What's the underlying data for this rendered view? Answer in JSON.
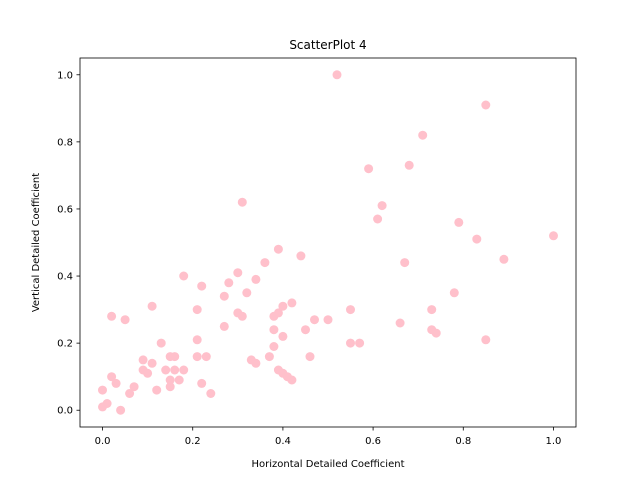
{
  "chart_data": {
    "type": "scatter",
    "title": "ScatterPlot 4",
    "xlabel": "Horizontal Detailed Coefficient",
    "ylabel": "Vertical Detailed Coefficient",
    "xlim": [
      -0.05,
      1.05
    ],
    "ylim": [
      -0.05,
      1.05
    ],
    "xticks": [
      0.0,
      0.2,
      0.4,
      0.6,
      0.8,
      1.0
    ],
    "yticks": [
      0.0,
      0.2,
      0.4,
      0.6,
      0.8,
      1.0
    ],
    "xtick_labels": [
      "0.0",
      "0.2",
      "0.4",
      "0.6",
      "0.8",
      "1.0"
    ],
    "ytick_labels": [
      "0.0",
      "0.2",
      "0.4",
      "0.6",
      "0.8",
      "1.0"
    ],
    "grid": false,
    "marker_color": "#ffc0cb",
    "points": [
      {
        "x": 0.0,
        "y": 0.06
      },
      {
        "x": 0.0,
        "y": 0.01
      },
      {
        "x": 0.01,
        "y": 0.02
      },
      {
        "x": 0.02,
        "y": 0.28
      },
      {
        "x": 0.02,
        "y": 0.1
      },
      {
        "x": 0.03,
        "y": 0.08
      },
      {
        "x": 0.04,
        "y": 0.0
      },
      {
        "x": 0.05,
        "y": 0.27
      },
      {
        "x": 0.06,
        "y": 0.05
      },
      {
        "x": 0.07,
        "y": 0.07
      },
      {
        "x": 0.09,
        "y": 0.12
      },
      {
        "x": 0.09,
        "y": 0.15
      },
      {
        "x": 0.1,
        "y": 0.11
      },
      {
        "x": 0.11,
        "y": 0.31
      },
      {
        "x": 0.11,
        "y": 0.14
      },
      {
        "x": 0.12,
        "y": 0.06
      },
      {
        "x": 0.13,
        "y": 0.2
      },
      {
        "x": 0.14,
        "y": 0.12
      },
      {
        "x": 0.15,
        "y": 0.07
      },
      {
        "x": 0.15,
        "y": 0.09
      },
      {
        "x": 0.15,
        "y": 0.16
      },
      {
        "x": 0.16,
        "y": 0.12
      },
      {
        "x": 0.16,
        "y": 0.16
      },
      {
        "x": 0.17,
        "y": 0.09
      },
      {
        "x": 0.18,
        "y": 0.12
      },
      {
        "x": 0.18,
        "y": 0.4
      },
      {
        "x": 0.21,
        "y": 0.3
      },
      {
        "x": 0.21,
        "y": 0.21
      },
      {
        "x": 0.21,
        "y": 0.16
      },
      {
        "x": 0.22,
        "y": 0.37
      },
      {
        "x": 0.22,
        "y": 0.08
      },
      {
        "x": 0.23,
        "y": 0.16
      },
      {
        "x": 0.24,
        "y": 0.05
      },
      {
        "x": 0.27,
        "y": 0.34
      },
      {
        "x": 0.27,
        "y": 0.25
      },
      {
        "x": 0.28,
        "y": 0.38
      },
      {
        "x": 0.3,
        "y": 0.41
      },
      {
        "x": 0.3,
        "y": 0.29
      },
      {
        "x": 0.31,
        "y": 0.28
      },
      {
        "x": 0.31,
        "y": 0.62
      },
      {
        "x": 0.32,
        "y": 0.35
      },
      {
        "x": 0.33,
        "y": 0.15
      },
      {
        "x": 0.34,
        "y": 0.39
      },
      {
        "x": 0.34,
        "y": 0.14
      },
      {
        "x": 0.36,
        "y": 0.44
      },
      {
        "x": 0.37,
        "y": 0.16
      },
      {
        "x": 0.38,
        "y": 0.19
      },
      {
        "x": 0.38,
        "y": 0.24
      },
      {
        "x": 0.38,
        "y": 0.28
      },
      {
        "x": 0.39,
        "y": 0.29
      },
      {
        "x": 0.39,
        "y": 0.12
      },
      {
        "x": 0.39,
        "y": 0.48
      },
      {
        "x": 0.4,
        "y": 0.31
      },
      {
        "x": 0.4,
        "y": 0.11
      },
      {
        "x": 0.4,
        "y": 0.22
      },
      {
        "x": 0.41,
        "y": 0.1
      },
      {
        "x": 0.42,
        "y": 0.09
      },
      {
        "x": 0.42,
        "y": 0.32
      },
      {
        "x": 0.44,
        "y": 0.46
      },
      {
        "x": 0.45,
        "y": 0.24
      },
      {
        "x": 0.46,
        "y": 0.16
      },
      {
        "x": 0.47,
        "y": 0.27
      },
      {
        "x": 0.5,
        "y": 0.27
      },
      {
        "x": 0.52,
        "y": 1.0
      },
      {
        "x": 0.55,
        "y": 0.3
      },
      {
        "x": 0.55,
        "y": 0.2
      },
      {
        "x": 0.57,
        "y": 0.2
      },
      {
        "x": 0.59,
        "y": 0.72
      },
      {
        "x": 0.61,
        "y": 0.57
      },
      {
        "x": 0.62,
        "y": 0.61
      },
      {
        "x": 0.66,
        "y": 0.26
      },
      {
        "x": 0.67,
        "y": 0.44
      },
      {
        "x": 0.68,
        "y": 0.73
      },
      {
        "x": 0.71,
        "y": 0.82
      },
      {
        "x": 0.73,
        "y": 0.3
      },
      {
        "x": 0.73,
        "y": 0.24
      },
      {
        "x": 0.74,
        "y": 0.23
      },
      {
        "x": 0.78,
        "y": 0.35
      },
      {
        "x": 0.79,
        "y": 0.56
      },
      {
        "x": 0.83,
        "y": 0.51
      },
      {
        "x": 0.85,
        "y": 0.21
      },
      {
        "x": 0.85,
        "y": 0.91
      },
      {
        "x": 0.89,
        "y": 0.45
      },
      {
        "x": 1.0,
        "y": 0.52
      }
    ]
  }
}
